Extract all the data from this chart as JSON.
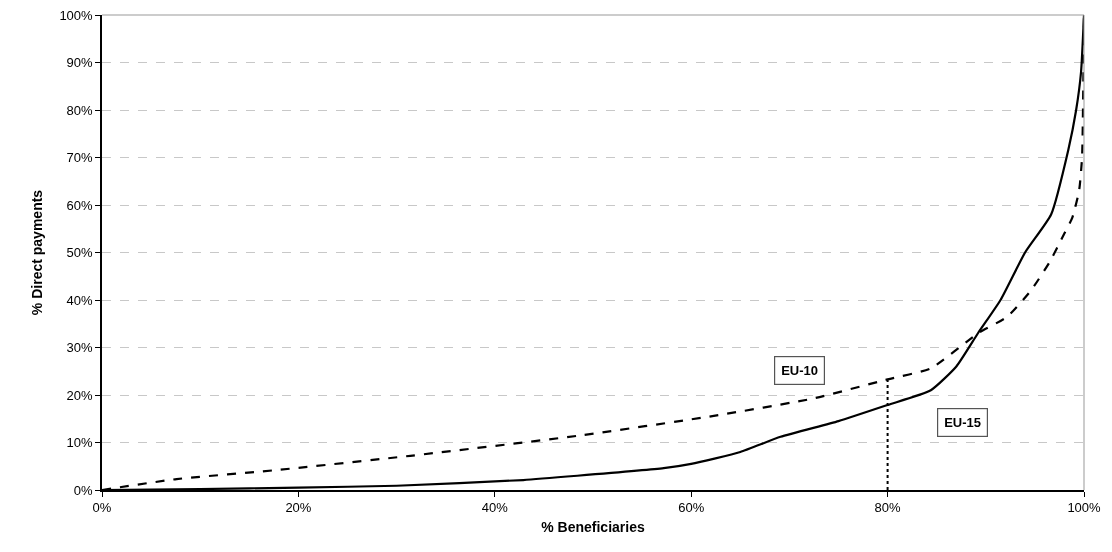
{
  "chart_data": {
    "type": "line",
    "xlabel": "% Beneficiaries",
    "ylabel": "% Direct payments",
    "xlim": [
      0,
      100
    ],
    "ylim": [
      0,
      100
    ],
    "xticks": [
      {
        "value": 0,
        "label": "0%"
      },
      {
        "value": 20,
        "label": "20%"
      },
      {
        "value": 40,
        "label": "40%"
      },
      {
        "value": 60,
        "label": "60%"
      },
      {
        "value": 80,
        "label": "80%"
      },
      {
        "value": 100,
        "label": "100%"
      }
    ],
    "yticks": [
      {
        "value": 0,
        "label": "0%"
      },
      {
        "value": 10,
        "label": "10%"
      },
      {
        "value": 20,
        "label": "20%"
      },
      {
        "value": 30,
        "label": "30%"
      },
      {
        "value": 40,
        "label": "40%"
      },
      {
        "value": 50,
        "label": "50%"
      },
      {
        "value": 60,
        "label": "60%"
      },
      {
        "value": 70,
        "label": "70%"
      },
      {
        "value": 80,
        "label": "80%"
      },
      {
        "value": 90,
        "label": "90%"
      },
      {
        "value": 100,
        "label": "100%"
      }
    ],
    "grid": "y",
    "legend": false,
    "marker": "none",
    "series": [
      {
        "name": "EU-10",
        "color": "#000000",
        "line_style": "dashed",
        "x": [
          0,
          7.6,
          17.8,
          31.4,
          48.4,
          62.3,
          72.5,
          80,
          84.4,
          89.2,
          92.2,
          94.6,
          96.5,
          98,
          98.8,
          99.5,
          99.8,
          100
        ],
        "values": [
          0,
          2.3,
          4.2,
          7.2,
          11.4,
          15.6,
          19.3,
          23.3,
          25.6,
          33,
          36.5,
          42,
          48,
          54,
          57.3,
          63,
          70,
          100
        ]
      },
      {
        "name": "EU-15",
        "color": "#000000",
        "line_style": "solid",
        "x": [
          0,
          10,
          20,
          30,
          42.9,
          48.4,
          57.2,
          60,
          65,
          69.1,
          75,
          80,
          84.4,
          87,
          89.2,
          91.5,
          94,
          96.65,
          98.4,
          99.2,
          99.7,
          100
        ],
        "values": [
          0,
          0.2,
          0.5,
          0.9,
          2.1,
          3,
          4.6,
          5.5,
          8,
          11.2,
          14.5,
          17.9,
          21,
          26,
          33,
          40,
          50,
          58,
          71.6,
          80,
          88,
          100
        ]
      }
    ],
    "ref_lines": [
      {
        "axis": "x",
        "value": 80,
        "line_style": "dotted",
        "color": "#000000"
      }
    ]
  }
}
